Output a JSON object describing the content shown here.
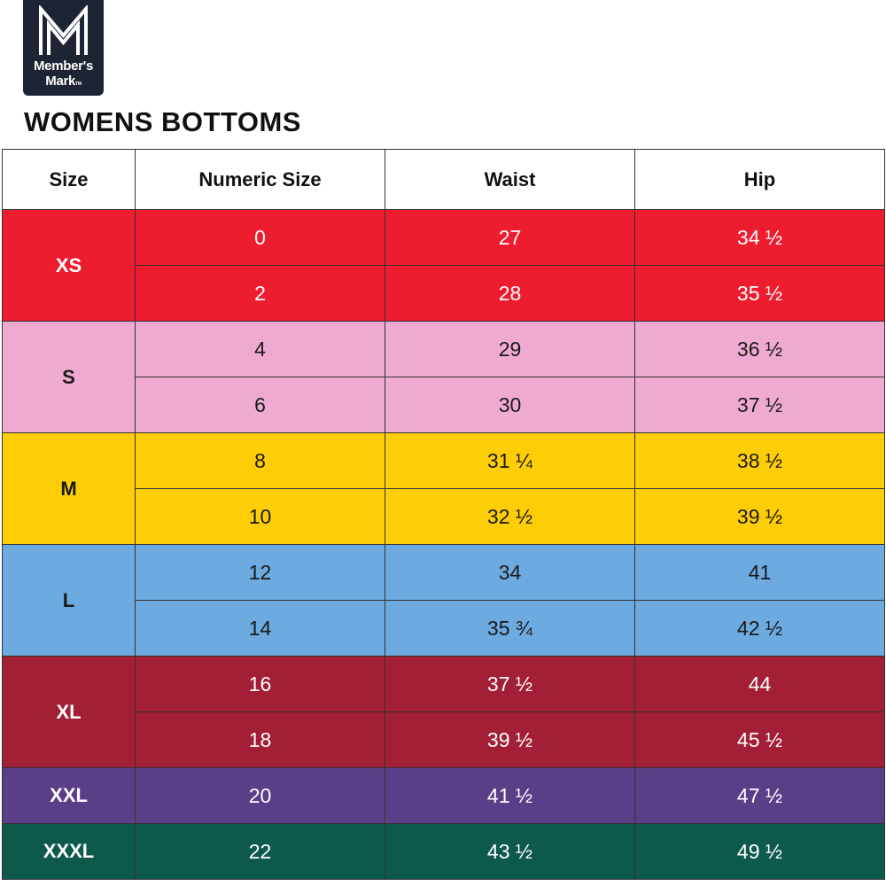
{
  "logo": {
    "line1": "Member's",
    "line2": "Mark",
    "tm": "TM"
  },
  "title": "WOMENS BOTTOMS",
  "headers": [
    "Size",
    "Numeric Size",
    "Waist",
    "Hip"
  ],
  "groups": [
    {
      "size": "XS",
      "bg": "#ed1c2e",
      "fg": "#ffffff",
      "rows": [
        {
          "numeric": "0",
          "waist": "27",
          "hip": "34 ½"
        },
        {
          "numeric": "2",
          "waist": "28",
          "hip": "35 ½"
        }
      ]
    },
    {
      "size": "S",
      "bg": "#eeaad0",
      "fg": "#1a1a1a",
      "rows": [
        {
          "numeric": "4",
          "waist": "29",
          "hip": "36 ½"
        },
        {
          "numeric": "6",
          "waist": "30",
          "hip": "37 ½"
        }
      ]
    },
    {
      "size": "M",
      "bg": "#fdcd08",
      "fg": "#1a1a1a",
      "rows": [
        {
          "numeric": "8",
          "waist": "31 ¼",
          "hip": "38 ½"
        },
        {
          "numeric": "10",
          "waist": "32 ½",
          "hip": "39 ½"
        }
      ]
    },
    {
      "size": "L",
      "bg": "#6caadf",
      "fg": "#1a1a1a",
      "rows": [
        {
          "numeric": "12",
          "waist": "34",
          "hip": "41"
        },
        {
          "numeric": "14",
          "waist": "35 ¾",
          "hip": "42 ½"
        }
      ]
    },
    {
      "size": "XL",
      "bg": "#a21f36",
      "fg": "#ffffff",
      "rows": [
        {
          "numeric": "16",
          "waist": "37 ½",
          "hip": "44"
        },
        {
          "numeric": "18",
          "waist": "39 ½",
          "hip": "45 ½"
        }
      ]
    },
    {
      "size": "XXL",
      "bg": "#5b3e88",
      "fg": "#ffffff",
      "rows": [
        {
          "numeric": "20",
          "waist": "41 ½",
          "hip": "47 ½"
        }
      ]
    },
    {
      "size": "XXXL",
      "bg": "#0d5a4b",
      "fg": "#ffffff",
      "rows": [
        {
          "numeric": "22",
          "waist": "43 ½",
          "hip": "49 ½"
        }
      ]
    }
  ]
}
